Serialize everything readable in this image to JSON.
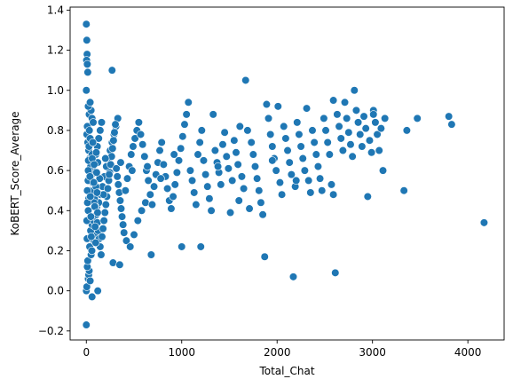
{
  "chart_data": {
    "type": "scatter",
    "xlabel": "Total_Chat",
    "ylabel": "KoBERT_Score_Average",
    "xlim": [
      -170,
      4380
    ],
    "ylim": [
      -0.245,
      1.415
    ],
    "xticks": [
      0,
      1000,
      2000,
      3000,
      4000
    ],
    "xtick_labels": [
      "0",
      "1000",
      "2000",
      "3000",
      "4000"
    ],
    "yticks": [
      -0.2,
      0.0,
      0.2,
      0.4,
      0.6,
      0.8,
      1.0,
      1.2,
      1.4
    ],
    "ytick_labels": [
      "−0.2",
      "0.0",
      "0.2",
      "0.4",
      "0.6",
      "0.8",
      "1.0",
      "1.2",
      "1.4"
    ],
    "grid": false,
    "legend": "none",
    "colors": {
      "point": "#1f77b4",
      "point_edge": "#ffffff",
      "axis": "#000000"
    },
    "points": [
      [
        0,
        1.33
      ],
      [
        5,
        1.25
      ],
      [
        8,
        1.18
      ],
      [
        3,
        1.15
      ],
      [
        10,
        1.13
      ],
      [
        15,
        1.09
      ],
      [
        0,
        1.0
      ],
      [
        270,
        1.1
      ],
      [
        0,
        -0.17
      ],
      [
        60,
        -0.03
      ],
      [
        120,
        0.0
      ],
      [
        0,
        0.0
      ],
      [
        20,
        0.06
      ],
      [
        25,
        0.08
      ],
      [
        30,
        0.1
      ],
      [
        10,
        0.12
      ],
      [
        5,
        0.02
      ],
      [
        40,
        0.05
      ],
      [
        15,
        0.15
      ],
      [
        50,
        0.18
      ],
      [
        35,
        0.22
      ],
      [
        80,
        0.25
      ],
      [
        100,
        0.28
      ],
      [
        45,
        0.3
      ],
      [
        60,
        0.33
      ],
      [
        75,
        0.35
      ],
      [
        90,
        0.37
      ],
      [
        20,
        0.4
      ],
      [
        110,
        0.42
      ],
      [
        130,
        0.44
      ],
      [
        25,
        0.46
      ],
      [
        150,
        0.48
      ],
      [
        40,
        0.5
      ],
      [
        170,
        0.52
      ],
      [
        55,
        0.55
      ],
      [
        190,
        0.57
      ],
      [
        70,
        0.6
      ],
      [
        210,
        0.62
      ],
      [
        85,
        0.64
      ],
      [
        230,
        0.66
      ],
      [
        100,
        0.68
      ],
      [
        250,
        0.7
      ],
      [
        115,
        0.72
      ],
      [
        270,
        0.74
      ],
      [
        130,
        0.76
      ],
      [
        290,
        0.78
      ],
      [
        145,
        0.8
      ],
      [
        310,
        0.82
      ],
      [
        160,
        0.84
      ],
      [
        330,
        0.86
      ],
      [
        30,
        0.88
      ],
      [
        50,
        0.9
      ],
      [
        20,
        0.92
      ],
      [
        40,
        0.94
      ],
      [
        60,
        0.86
      ],
      [
        10,
        0.82
      ],
      [
        5,
        0.78
      ],
      [
        15,
        0.74
      ],
      [
        25,
        0.7
      ],
      [
        35,
        0.66
      ],
      [
        45,
        0.62
      ],
      [
        55,
        0.58
      ],
      [
        65,
        0.54
      ],
      [
        75,
        0.5
      ],
      [
        85,
        0.46
      ],
      [
        95,
        0.42
      ],
      [
        105,
        0.38
      ],
      [
        115,
        0.34
      ],
      [
        125,
        0.3
      ],
      [
        135,
        0.26
      ],
      [
        145,
        0.22
      ],
      [
        155,
        0.18
      ],
      [
        165,
        0.27
      ],
      [
        175,
        0.31
      ],
      [
        185,
        0.35
      ],
      [
        195,
        0.39
      ],
      [
        205,
        0.43
      ],
      [
        215,
        0.47
      ],
      [
        225,
        0.51
      ],
      [
        235,
        0.55
      ],
      [
        245,
        0.59
      ],
      [
        255,
        0.63
      ],
      [
        265,
        0.67
      ],
      [
        275,
        0.71
      ],
      [
        285,
        0.75
      ],
      [
        295,
        0.79
      ],
      [
        305,
        0.83
      ],
      [
        315,
        0.61
      ],
      [
        325,
        0.57
      ],
      [
        335,
        0.53
      ],
      [
        345,
        0.49
      ],
      [
        355,
        0.45
      ],
      [
        365,
        0.41
      ],
      [
        375,
        0.37
      ],
      [
        385,
        0.33
      ],
      [
        395,
        0.29
      ],
      [
        280,
        0.14
      ],
      [
        350,
        0.13
      ],
      [
        420,
        0.25
      ],
      [
        460,
        0.22
      ],
      [
        500,
        0.28
      ],
      [
        540,
        0.35
      ],
      [
        580,
        0.4
      ],
      [
        620,
        0.44
      ],
      [
        410,
        0.5
      ],
      [
        430,
        0.56
      ],
      [
        450,
        0.62
      ],
      [
        470,
        0.68
      ],
      [
        490,
        0.72
      ],
      [
        510,
        0.76
      ],
      [
        530,
        0.8
      ],
      [
        550,
        0.84
      ],
      [
        570,
        0.78
      ],
      [
        590,
        0.73
      ],
      [
        610,
        0.67
      ],
      [
        630,
        0.6
      ],
      [
        650,
        0.55
      ],
      [
        670,
        0.48
      ],
      [
        690,
        0.43
      ],
      [
        710,
        0.52
      ],
      [
        730,
        0.58
      ],
      [
        750,
        0.64
      ],
      [
        770,
        0.7
      ],
      [
        790,
        0.74
      ],
      [
        810,
        0.63
      ],
      [
        830,
        0.57
      ],
      [
        850,
        0.51
      ],
      [
        870,
        0.45
      ],
      [
        890,
        0.41
      ],
      [
        910,
        0.47
      ],
      [
        930,
        0.53
      ],
      [
        950,
        0.59
      ],
      [
        970,
        0.65
      ],
      [
        990,
        0.71
      ],
      [
        1010,
        0.77
      ],
      [
        1030,
        0.83
      ],
      [
        680,
        0.18
      ],
      [
        1000,
        0.22
      ],
      [
        1200,
        0.22
      ],
      [
        1050,
        0.88
      ],
      [
        1070,
        0.94
      ],
      [
        1090,
        0.6
      ],
      [
        1110,
        0.55
      ],
      [
        1130,
        0.49
      ],
      [
        1150,
        0.43
      ],
      [
        1170,
        0.68
      ],
      [
        1190,
        0.74
      ],
      [
        1210,
        0.8
      ],
      [
        1230,
        0.65
      ],
      [
        1250,
        0.58
      ],
      [
        1270,
        0.52
      ],
      [
        1290,
        0.46
      ],
      [
        1310,
        0.4
      ],
      [
        1330,
        0.88
      ],
      [
        1350,
        0.7
      ],
      [
        1370,
        0.64
      ],
      [
        1390,
        0.59
      ],
      [
        1410,
        0.53
      ],
      [
        1430,
        0.73
      ],
      [
        1450,
        0.79
      ],
      [
        1470,
        0.67
      ],
      [
        1490,
        0.61
      ],
      [
        1510,
        0.39
      ],
      [
        1530,
        0.55
      ],
      [
        1550,
        0.75
      ],
      [
        1570,
        0.69
      ],
      [
        1590,
        0.63
      ],
      [
        1610,
        0.82
      ],
      [
        1630,
        0.57
      ],
      [
        1650,
        0.51
      ],
      [
        1670,
        1.05
      ],
      [
        1690,
        0.8
      ],
      [
        1710,
        0.41
      ],
      [
        1730,
        0.74
      ],
      [
        1750,
        0.68
      ],
      [
        1770,
        0.62
      ],
      [
        1790,
        0.56
      ],
      [
        1810,
        0.5
      ],
      [
        1830,
        0.44
      ],
      [
        1850,
        0.38
      ],
      [
        1870,
        0.17
      ],
      [
        1890,
        0.93
      ],
      [
        1910,
        0.86
      ],
      [
        1930,
        0.78
      ],
      [
        1950,
        0.72
      ],
      [
        1970,
        0.66
      ],
      [
        1990,
        0.6
      ],
      [
        2010,
        0.92
      ],
      [
        2030,
        0.54
      ],
      [
        2050,
        0.48
      ],
      [
        2070,
        0.82
      ],
      [
        2090,
        0.76
      ],
      [
        2110,
        0.7
      ],
      [
        2130,
        0.64
      ],
      [
        2150,
        0.58
      ],
      [
        2170,
        0.07
      ],
      [
        2190,
        0.52
      ],
      [
        2210,
        0.84
      ],
      [
        2230,
        0.78
      ],
      [
        2250,
        0.72
      ],
      [
        2270,
        0.66
      ],
      [
        2290,
        0.6
      ],
      [
        2310,
        0.91
      ],
      [
        2330,
        0.55
      ],
      [
        2350,
        0.49
      ],
      [
        2370,
        0.8
      ],
      [
        2390,
        0.74
      ],
      [
        2410,
        0.68
      ],
      [
        2430,
        0.62
      ],
      [
        2450,
        0.56
      ],
      [
        2470,
        0.5
      ],
      [
        2490,
        0.86
      ],
      [
        2510,
        0.8
      ],
      [
        2530,
        0.74
      ],
      [
        2550,
        0.68
      ],
      [
        2570,
        0.53
      ],
      [
        2590,
        0.95
      ],
      [
        2610,
        0.09
      ],
      [
        2630,
        0.88
      ],
      [
        2650,
        0.82
      ],
      [
        2670,
        0.76
      ],
      [
        2690,
        0.7
      ],
      [
        2710,
        0.94
      ],
      [
        2730,
        0.86
      ],
      [
        2750,
        0.79
      ],
      [
        2770,
        0.73
      ],
      [
        2790,
        0.67
      ],
      [
        2810,
        1.0
      ],
      [
        2830,
        0.9
      ],
      [
        2850,
        0.84
      ],
      [
        2870,
        0.78
      ],
      [
        2890,
        0.72
      ],
      [
        2910,
        0.87
      ],
      [
        2930,
        0.81
      ],
      [
        2950,
        0.47
      ],
      [
        2970,
        0.75
      ],
      [
        2990,
        0.69
      ],
      [
        3010,
        0.9
      ],
      [
        3030,
        0.84
      ],
      [
        3050,
        0.78
      ],
      [
        3070,
        0.7
      ],
      [
        3090,
        0.81
      ],
      [
        3110,
        0.6
      ],
      [
        3130,
        0.86
      ],
      [
        3330,
        0.5
      ],
      [
        3360,
        0.8
      ],
      [
        3470,
        0.86
      ],
      [
        3800,
        0.87
      ],
      [
        3830,
        0.83
      ],
      [
        4170,
        0.34
      ],
      [
        3010,
        0.88
      ],
      [
        2590,
        0.48
      ],
      [
        2200,
        0.55
      ],
      [
        1950,
        0.65
      ],
      [
        1600,
        0.45
      ],
      [
        1380,
        0.62
      ],
      [
        920,
        0.68
      ],
      [
        780,
        0.56
      ],
      [
        640,
        0.62
      ],
      [
        480,
        0.6
      ],
      [
        360,
        0.64
      ],
      [
        240,
        0.58
      ],
      [
        200,
        0.66
      ],
      [
        180,
        0.48
      ],
      [
        140,
        0.56
      ],
      [
        120,
        0.64
      ],
      [
        100,
        0.52
      ],
      [
        80,
        0.44
      ],
      [
        60,
        0.68
      ],
      [
        40,
        0.76
      ],
      [
        20,
        0.6
      ],
      [
        10,
        0.5
      ],
      [
        5,
        0.35
      ],
      [
        8,
        0.26
      ],
      [
        12,
        0.44
      ],
      [
        18,
        0.55
      ],
      [
        22,
        0.65
      ],
      [
        28,
        0.72
      ],
      [
        32,
        0.8
      ],
      [
        38,
        0.57
      ],
      [
        42,
        0.47
      ],
      [
        48,
        0.37
      ],
      [
        52,
        0.27
      ],
      [
        58,
        0.2
      ],
      [
        62,
        0.66
      ],
      [
        68,
        0.74
      ],
      [
        72,
        0.84
      ],
      [
        78,
        0.54
      ],
      [
        82,
        0.63
      ],
      [
        88,
        0.42
      ],
      [
        92,
        0.32
      ],
      [
        98,
        0.24
      ],
      [
        104,
        0.69
      ],
      [
        108,
        0.59
      ],
      [
        112,
        0.49
      ],
      [
        118,
        0.39
      ]
    ]
  }
}
